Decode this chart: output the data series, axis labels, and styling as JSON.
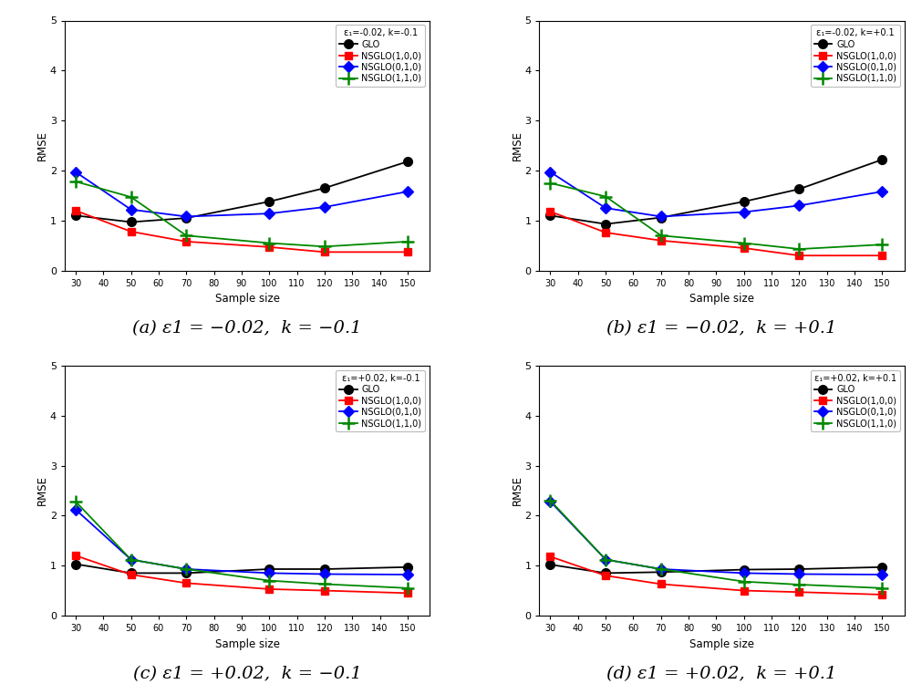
{
  "x": [
    30,
    50,
    70,
    100,
    120,
    150
  ],
  "panels": [
    {
      "label_parts": [
        "(a) ",
        "ε",
        "1",
        " = −0.02,  k = −0.1"
      ],
      "legend_title": "ε₁=-0.02, k=-0.1",
      "GLO": [
        1.1,
        0.97,
        1.05,
        1.38,
        1.65,
        2.18
      ],
      "NSGLO100": [
        1.2,
        0.78,
        0.58,
        0.47,
        0.37,
        0.37
      ],
      "NSGLO010": [
        1.97,
        1.22,
        1.08,
        1.14,
        1.27,
        1.58
      ],
      "NSGLO110": [
        1.78,
        1.47,
        0.7,
        0.55,
        0.48,
        0.58
      ]
    },
    {
      "label_parts": [
        "(b) ",
        "ε",
        "1",
        " = −0.02,  k = +0.1"
      ],
      "legend_title": "ε₁=-0.02, k=+0.1",
      "GLO": [
        1.1,
        0.93,
        1.06,
        1.38,
        1.63,
        2.22
      ],
      "NSGLO100": [
        1.18,
        0.76,
        0.6,
        0.45,
        0.3,
        0.3
      ],
      "NSGLO010": [
        1.97,
        1.25,
        1.08,
        1.17,
        1.3,
        1.58
      ],
      "NSGLO110": [
        1.75,
        1.48,
        0.7,
        0.55,
        0.43,
        0.52
      ]
    },
    {
      "label_parts": [
        "(c) ",
        "ε",
        "1",
        " = +0.02,  k = −0.1"
      ],
      "legend_title": "ε₁=+0.02, k=-0.1",
      "GLO": [
        1.03,
        0.85,
        0.85,
        0.93,
        0.93,
        0.97
      ],
      "NSGLO100": [
        1.2,
        0.82,
        0.65,
        0.53,
        0.5,
        0.45
      ],
      "NSGLO010": [
        2.12,
        1.12,
        0.93,
        0.85,
        0.83,
        0.82
      ],
      "NSGLO110": [
        2.28,
        1.12,
        0.93,
        0.7,
        0.63,
        0.55
      ]
    },
    {
      "label_parts": [
        "(d) ",
        "ε",
        "1",
        " = +0.02,  k = +0.1"
      ],
      "legend_title": "ε₁=+0.02, k=+0.1",
      "GLO": [
        1.02,
        0.85,
        0.87,
        0.92,
        0.93,
        0.97
      ],
      "NSGLO100": [
        1.18,
        0.8,
        0.63,
        0.5,
        0.47,
        0.42
      ],
      "NSGLO010": [
        2.28,
        1.12,
        0.93,
        0.85,
        0.83,
        0.82
      ],
      "NSGLO110": [
        2.3,
        1.12,
        0.93,
        0.68,
        0.62,
        0.55
      ]
    }
  ],
  "colors": {
    "GLO": "#000000",
    "NSGLO100": "#ff0000",
    "NSGLO010": "#0000ff",
    "NSGLO110": "#008800"
  },
  "legend_labels": {
    "GLO": "GLO",
    "NSGLO100": "NSGLO(1,0,0)",
    "NSGLO010": "NSGLO(0,1,0)",
    "NSGLO110": "NSGLO(1,1,0)"
  },
  "ylim": [
    0,
    5
  ],
  "yticks": [
    0,
    1,
    2,
    3,
    4,
    5
  ],
  "xticks": [
    30,
    40,
    50,
    60,
    70,
    80,
    90,
    100,
    110,
    120,
    130,
    140,
    150
  ],
  "xlabel": "Sample size",
  "ylabel": "RMSE",
  "background_color": "#ffffff"
}
